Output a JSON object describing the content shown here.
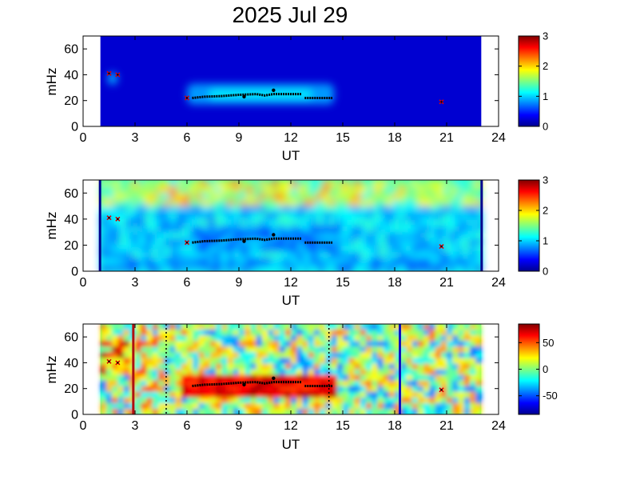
{
  "title": "2025 Jul 29",
  "chart_data": [
    {
      "type": "heatmap",
      "name": "panel-1",
      "xlabel": "UT",
      "ylabel": "mHz",
      "xlim": [
        0,
        24
      ],
      "ylim": [
        0,
        70
      ],
      "xticks": [
        "0",
        "3",
        "6",
        "9",
        "12",
        "15",
        "18",
        "21",
        "24"
      ],
      "yticks": [
        "0",
        "20",
        "40",
        "60"
      ],
      "data_range_ut": [
        1.0,
        23.0
      ],
      "colormap": "jet",
      "colorbar": {
        "min": 0,
        "max": 3,
        "ticks": [
          "0",
          "1",
          "2",
          "3"
        ]
      },
      "features": [
        {
          "ut": [
            6.0,
            14.5
          ],
          "mhz": [
            17,
            33
          ],
          "level": 1.1
        },
        {
          "ut": [
            1.4,
            2.0
          ],
          "mhz": [
            32,
            42
          ],
          "level": 1.0
        }
      ],
      "red_markers": [
        [
          1.5,
          41
        ],
        [
          2.0,
          40
        ],
        [
          6.0,
          22
        ],
        [
          20.7,
          19
        ]
      ],
      "black_trace": [
        [
          6.3,
          22
        ],
        [
          7.0,
          23
        ],
        [
          8.0,
          23.5
        ],
        [
          9.0,
          24.5
        ],
        [
          10.0,
          25
        ],
        [
          10.5,
          24
        ],
        [
          11.0,
          25
        ],
        [
          12.0,
          25
        ],
        [
          12.6,
          25
        ],
        [
          12.8,
          22
        ],
        [
          13.5,
          22
        ],
        [
          14.4,
          22
        ]
      ],
      "black_points": [
        [
          9.3,
          23
        ],
        [
          11.0,
          28
        ]
      ]
    },
    {
      "type": "heatmap",
      "name": "panel-2",
      "xlabel": "UT",
      "ylabel": "mHz",
      "xlim": [
        0,
        24
      ],
      "ylim": [
        0,
        70
      ],
      "xticks": [
        "0",
        "3",
        "6",
        "9",
        "12",
        "15",
        "18",
        "21",
        "24"
      ],
      "yticks": [
        "0",
        "20",
        "40",
        "60"
      ],
      "data_range_ut": [
        1.0,
        23.0
      ],
      "colormap": "jet",
      "colorbar": {
        "min": 0,
        "max": 3,
        "ticks": [
          "0",
          "1",
          "2",
          "3"
        ]
      },
      "red_markers": [
        [
          1.5,
          41
        ],
        [
          2.0,
          40
        ],
        [
          6.0,
          22
        ],
        [
          20.7,
          19
        ]
      ],
      "black_trace": [
        [
          6.3,
          22
        ],
        [
          7.0,
          23
        ],
        [
          8.0,
          23.5
        ],
        [
          9.0,
          24.5
        ],
        [
          10.0,
          25
        ],
        [
          10.5,
          24
        ],
        [
          11.0,
          25
        ],
        [
          12.0,
          25
        ],
        [
          12.6,
          25
        ],
        [
          12.8,
          22
        ],
        [
          13.5,
          22
        ],
        [
          14.4,
          22
        ]
      ],
      "black_points": [
        [
          9.3,
          23
        ],
        [
          11.0,
          28
        ]
      ]
    },
    {
      "type": "heatmap",
      "name": "panel-3",
      "xlabel": "UT",
      "ylabel": "mHz",
      "xlim": [
        0,
        24
      ],
      "ylim": [
        0,
        70
      ],
      "xticks": [
        "0",
        "3",
        "6",
        "9",
        "12",
        "15",
        "18",
        "21",
        "24"
      ],
      "yticks": [
        "0",
        "20",
        "40",
        "60"
      ],
      "data_range_ut": [
        1.0,
        23.0
      ],
      "colormap": "jet",
      "colorbar": {
        "min": -85,
        "max": 85,
        "ticks": [
          "50",
          "0",
          "-50"
        ],
        "tick_values": [
          50,
          0,
          -50
        ]
      },
      "vertical_lines": [
        {
          "ut": 2.9,
          "color": "#b01010",
          "style": "solid"
        },
        {
          "ut": 4.8,
          "color": "#000000",
          "style": "dotted"
        },
        {
          "ut": 14.2,
          "color": "#000000",
          "style": "dotted"
        },
        {
          "ut": 18.3,
          "color": "#1010c0",
          "style": "solid"
        }
      ],
      "red_markers": [
        [
          1.5,
          41
        ],
        [
          2.0,
          40
        ],
        [
          20.7,
          19
        ]
      ],
      "black_trace": [
        [
          6.3,
          22
        ],
        [
          7.0,
          23
        ],
        [
          8.0,
          23.5
        ],
        [
          9.0,
          24.5
        ],
        [
          10.0,
          25
        ],
        [
          10.5,
          24
        ],
        [
          11.0,
          25
        ],
        [
          12.0,
          25
        ],
        [
          12.6,
          25
        ],
        [
          12.8,
          22
        ],
        [
          13.5,
          22
        ],
        [
          14.4,
          22
        ]
      ],
      "black_points": [
        [
          9.3,
          23
        ],
        [
          11.0,
          28
        ]
      ]
    }
  ]
}
